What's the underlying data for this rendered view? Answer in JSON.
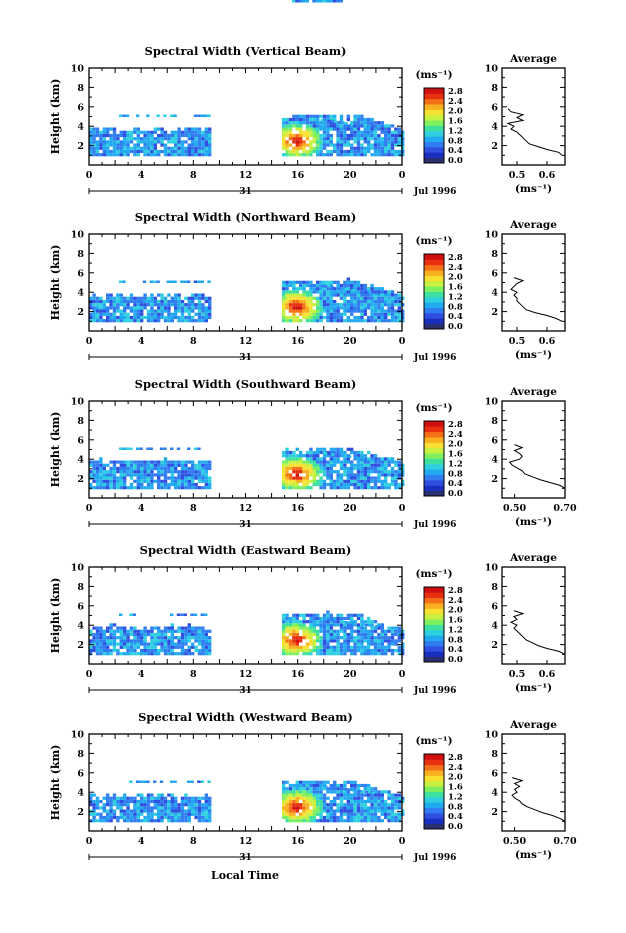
{
  "figure": {
    "bottom_xlabel": "Local Time"
  },
  "colorbar": {
    "unit_label": "(ms⁻¹)",
    "ticks": [
      "0.0",
      "0.4",
      "0.8",
      "1.2",
      "1.6",
      "2.0",
      "2.4",
      "2.8"
    ],
    "colors": [
      "#2a2f6e",
      "#1b2fbf",
      "#2f4fe0",
      "#2f7df0",
      "#22aaf0",
      "#2ed0e0",
      "#3ee0a0",
      "#7ef060",
      "#c8f040",
      "#f8e030",
      "#f8b020",
      "#f47018",
      "#e83010",
      "#d01010"
    ]
  },
  "chart_data": [
    {
      "type": "heatmap",
      "title": "Spectral Width (Vertical Beam)",
      "ylabel": "Height (km)",
      "ylim": [
        0,
        10
      ],
      "yticks": [
        "2",
        "4",
        "6",
        "8",
        "10"
      ],
      "xticks": [
        "0",
        "4",
        "8",
        "12",
        "16",
        "20",
        "0"
      ],
      "date_day": "31",
      "date_label": "Jul 1996",
      "echo_segments": [
        {
          "start_hour": 0.0,
          "end_hour": 9.3,
          "top_km": 3.5,
          "sparse_layer_km": 5.0
        },
        {
          "start_hour": 14.8,
          "end_hour": 24.0,
          "top_km": 5.0,
          "max_width_ms": 2.8,
          "max_at_hour": 15.8,
          "max_at_km": 2.3
        }
      ],
      "profile": {
        "title": "Average",
        "xlabel": "(ms⁻¹)",
        "xticks": [
          "0.5",
          "0.6"
        ],
        "xlim": [
          0.45,
          0.66
        ],
        "ylim": [
          0,
          10
        ],
        "yticks": [
          "2",
          "4",
          "6",
          "8",
          "10"
        ],
        "height_km": [
          1.0,
          1.3,
          1.6,
          1.9,
          2.2,
          2.5,
          2.8,
          3.1,
          3.4,
          3.7,
          4.0,
          4.3,
          4.6,
          4.9,
          5.2,
          5.5,
          5.8
        ],
        "width_ms": [
          0.65,
          0.64,
          0.6,
          0.57,
          0.54,
          0.53,
          0.52,
          0.51,
          0.5,
          0.48,
          0.49,
          0.47,
          0.52,
          0.5,
          0.52,
          0.48,
          0.47
        ]
      }
    },
    {
      "type": "heatmap",
      "title": "Spectral Width (Northward Beam)",
      "ylabel": "Height (km)",
      "ylim": [
        0,
        10
      ],
      "yticks": [
        "2",
        "4",
        "6",
        "8",
        "10"
      ],
      "xticks": [
        "0",
        "4",
        "8",
        "12",
        "16",
        "20",
        "0"
      ],
      "date_day": "31",
      "date_label": "Jul 1996",
      "echo_segments": [
        {
          "start_hour": 0.0,
          "end_hour": 9.3,
          "top_km": 3.5,
          "sparse_layer_km": 5.0
        },
        {
          "start_hour": 14.8,
          "end_hour": 24.0,
          "top_km": 5.0,
          "max_width_ms": 2.8,
          "max_at_hour": 15.8,
          "max_at_km": 2.3
        }
      ],
      "profile": {
        "title": "Average",
        "xlabel": "(ms⁻¹)",
        "xticks": [
          "0.5",
          "0.6"
        ],
        "xlim": [
          0.45,
          0.66
        ],
        "ylim": [
          0,
          10
        ],
        "yticks": [
          "2",
          "4",
          "6",
          "8",
          "10"
        ],
        "height_km": [
          1.0,
          1.3,
          1.6,
          1.9,
          2.2,
          2.5,
          2.8,
          3.1,
          3.4,
          3.7,
          4.0,
          4.3,
          4.6,
          4.9,
          5.2,
          5.5
        ],
        "width_ms": [
          0.65,
          0.63,
          0.6,
          0.56,
          0.53,
          0.52,
          0.51,
          0.5,
          0.5,
          0.49,
          0.5,
          0.48,
          0.49,
          0.5,
          0.52,
          0.49
        ]
      }
    },
    {
      "type": "heatmap",
      "title": "Spectral Width (Southward Beam)",
      "ylabel": "Height (km)",
      "ylim": [
        0,
        10
      ],
      "yticks": [
        "2",
        "4",
        "6",
        "8",
        "10"
      ],
      "xticks": [
        "0",
        "4",
        "8",
        "12",
        "16",
        "20",
        "0"
      ],
      "date_day": "31",
      "date_label": "Jul 1996",
      "echo_segments": [
        {
          "start_hour": 0.0,
          "end_hour": 9.3,
          "top_km": 3.7,
          "sparse_layer_km": 5.0
        },
        {
          "start_hour": 14.8,
          "end_hour": 24.0,
          "top_km": 5.0,
          "max_width_ms": 2.8,
          "max_at_hour": 15.8,
          "max_at_km": 2.3
        }
      ],
      "profile": {
        "title": "Average",
        "xlabel": "(ms⁻¹)",
        "xticks": [
          "0.50",
          "0.70"
        ],
        "xlim": [
          0.45,
          0.7
        ],
        "ylim": [
          0,
          10
        ],
        "yticks": [
          "2",
          "4",
          "6",
          "8",
          "10"
        ],
        "height_km": [
          1.0,
          1.3,
          1.6,
          1.9,
          2.2,
          2.5,
          2.8,
          3.1,
          3.4,
          3.7,
          4.0,
          4.3,
          4.6,
          4.9,
          5.2,
          5.5
        ],
        "width_ms": [
          0.7,
          0.68,
          0.64,
          0.6,
          0.57,
          0.54,
          0.53,
          0.51,
          0.49,
          0.48,
          0.52,
          0.53,
          0.52,
          0.5,
          0.53,
          0.5
        ]
      }
    },
    {
      "type": "heatmap",
      "title": "Spectral Width (Eastward Beam)",
      "ylabel": "Height (km)",
      "ylim": [
        0,
        10
      ],
      "yticks": [
        "2",
        "4",
        "6",
        "8",
        "10"
      ],
      "xticks": [
        "0",
        "4",
        "8",
        "12",
        "16",
        "20",
        "0"
      ],
      "date_day": "31",
      "date_label": "Jul 1996",
      "echo_segments": [
        {
          "start_hour": 0.0,
          "end_hour": 9.3,
          "top_km": 3.7,
          "sparse_layer_km": 5.0
        },
        {
          "start_hour": 14.8,
          "end_hour": 24.0,
          "top_km": 5.0,
          "max_width_ms": 2.8,
          "max_at_hour": 15.8,
          "max_at_km": 2.3
        }
      ],
      "profile": {
        "title": "Average",
        "xlabel": "(ms⁻¹)",
        "xticks": [
          "0.5",
          "0.6"
        ],
        "xlim": [
          0.45,
          0.66
        ],
        "ylim": [
          0,
          10
        ],
        "yticks": [
          "2",
          "4",
          "6",
          "8",
          "10"
        ],
        "height_km": [
          1.0,
          1.3,
          1.6,
          1.9,
          2.2,
          2.5,
          2.8,
          3.1,
          3.4,
          3.7,
          4.0,
          4.3,
          4.6,
          4.9,
          5.2,
          5.5
        ],
        "width_ms": [
          0.66,
          0.64,
          0.6,
          0.57,
          0.55,
          0.53,
          0.52,
          0.51,
          0.5,
          0.49,
          0.5,
          0.48,
          0.5,
          0.49,
          0.52,
          0.49
        ]
      }
    },
    {
      "type": "heatmap",
      "title": "Spectral Width (Westward Beam)",
      "ylabel": "Height (km)",
      "ylim": [
        0,
        10
      ],
      "yticks": [
        "2",
        "4",
        "6",
        "8",
        "10"
      ],
      "xticks": [
        "0",
        "4",
        "8",
        "12",
        "16",
        "20",
        "0"
      ],
      "date_day": "31",
      "date_label": "Jul 1996",
      "echo_segments": [
        {
          "start_hour": 0.0,
          "end_hour": 9.3,
          "top_km": 3.5,
          "sparse_layer_km": 5.0
        },
        {
          "start_hour": 14.8,
          "end_hour": 24.0,
          "top_km": 5.0,
          "max_width_ms": 2.8,
          "max_at_hour": 15.8,
          "max_at_km": 2.3
        }
      ],
      "profile": {
        "title": "Average",
        "xlabel": "(ms⁻¹)",
        "xticks": [
          "0.50",
          "0.70"
        ],
        "xlim": [
          0.45,
          0.7
        ],
        "ylim": [
          0,
          10
        ],
        "yticks": [
          "2",
          "4",
          "6",
          "8",
          "10"
        ],
        "height_km": [
          1.0,
          1.3,
          1.6,
          1.9,
          2.2,
          2.5,
          2.8,
          3.1,
          3.4,
          3.7,
          4.0,
          4.3,
          4.6,
          4.9,
          5.2,
          5.5
        ],
        "width_ms": [
          0.7,
          0.68,
          0.65,
          0.61,
          0.58,
          0.55,
          0.53,
          0.52,
          0.5,
          0.49,
          0.51,
          0.5,
          0.52,
          0.5,
          0.53,
          0.49
        ]
      }
    }
  ]
}
